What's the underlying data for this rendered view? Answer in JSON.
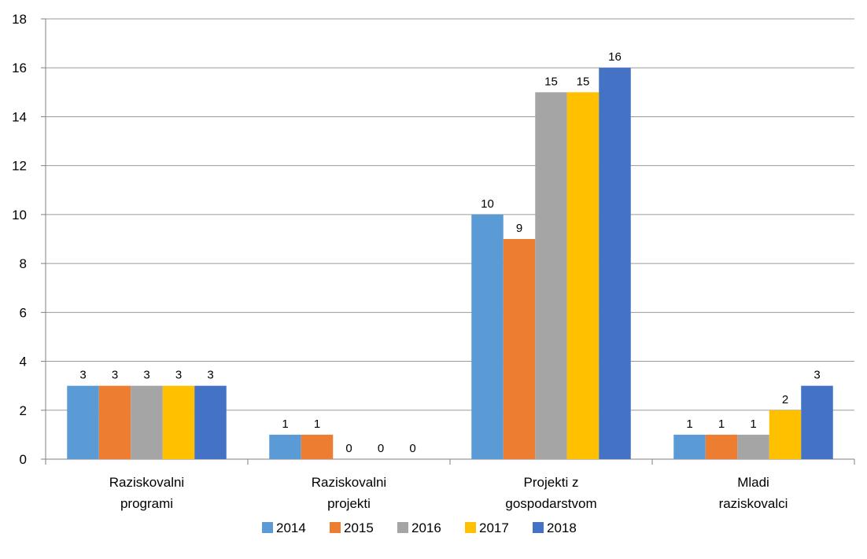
{
  "chart_data": {
    "type": "bar",
    "categories": [
      [
        "Raziskovalni",
        "programi"
      ],
      [
        "Raziskovalni",
        "projekti"
      ],
      [
        "Projekti z",
        "gospodarstvom"
      ],
      [
        "Mladi",
        "raziskovalci"
      ]
    ],
    "series": [
      {
        "name": "2014",
        "color": "#5b9bd5",
        "values": [
          3,
          1,
          10,
          1
        ]
      },
      {
        "name": "2015",
        "color": "#ed7d31",
        "values": [
          3,
          1,
          9,
          1
        ]
      },
      {
        "name": "2016",
        "color": "#a5a5a5",
        "values": [
          3,
          0,
          15,
          1
        ]
      },
      {
        "name": "2017",
        "color": "#ffc000",
        "values": [
          3,
          0,
          15,
          2
        ]
      },
      {
        "name": "2018",
        "color": "#4472c4",
        "values": [
          3,
          0,
          16,
          3
        ]
      }
    ],
    "ylim": [
      0,
      18
    ],
    "yticks": [
      0,
      2,
      4,
      6,
      8,
      10,
      12,
      14,
      16,
      18
    ],
    "grid": true,
    "legend_position": "bottom",
    "data_labels": true
  }
}
